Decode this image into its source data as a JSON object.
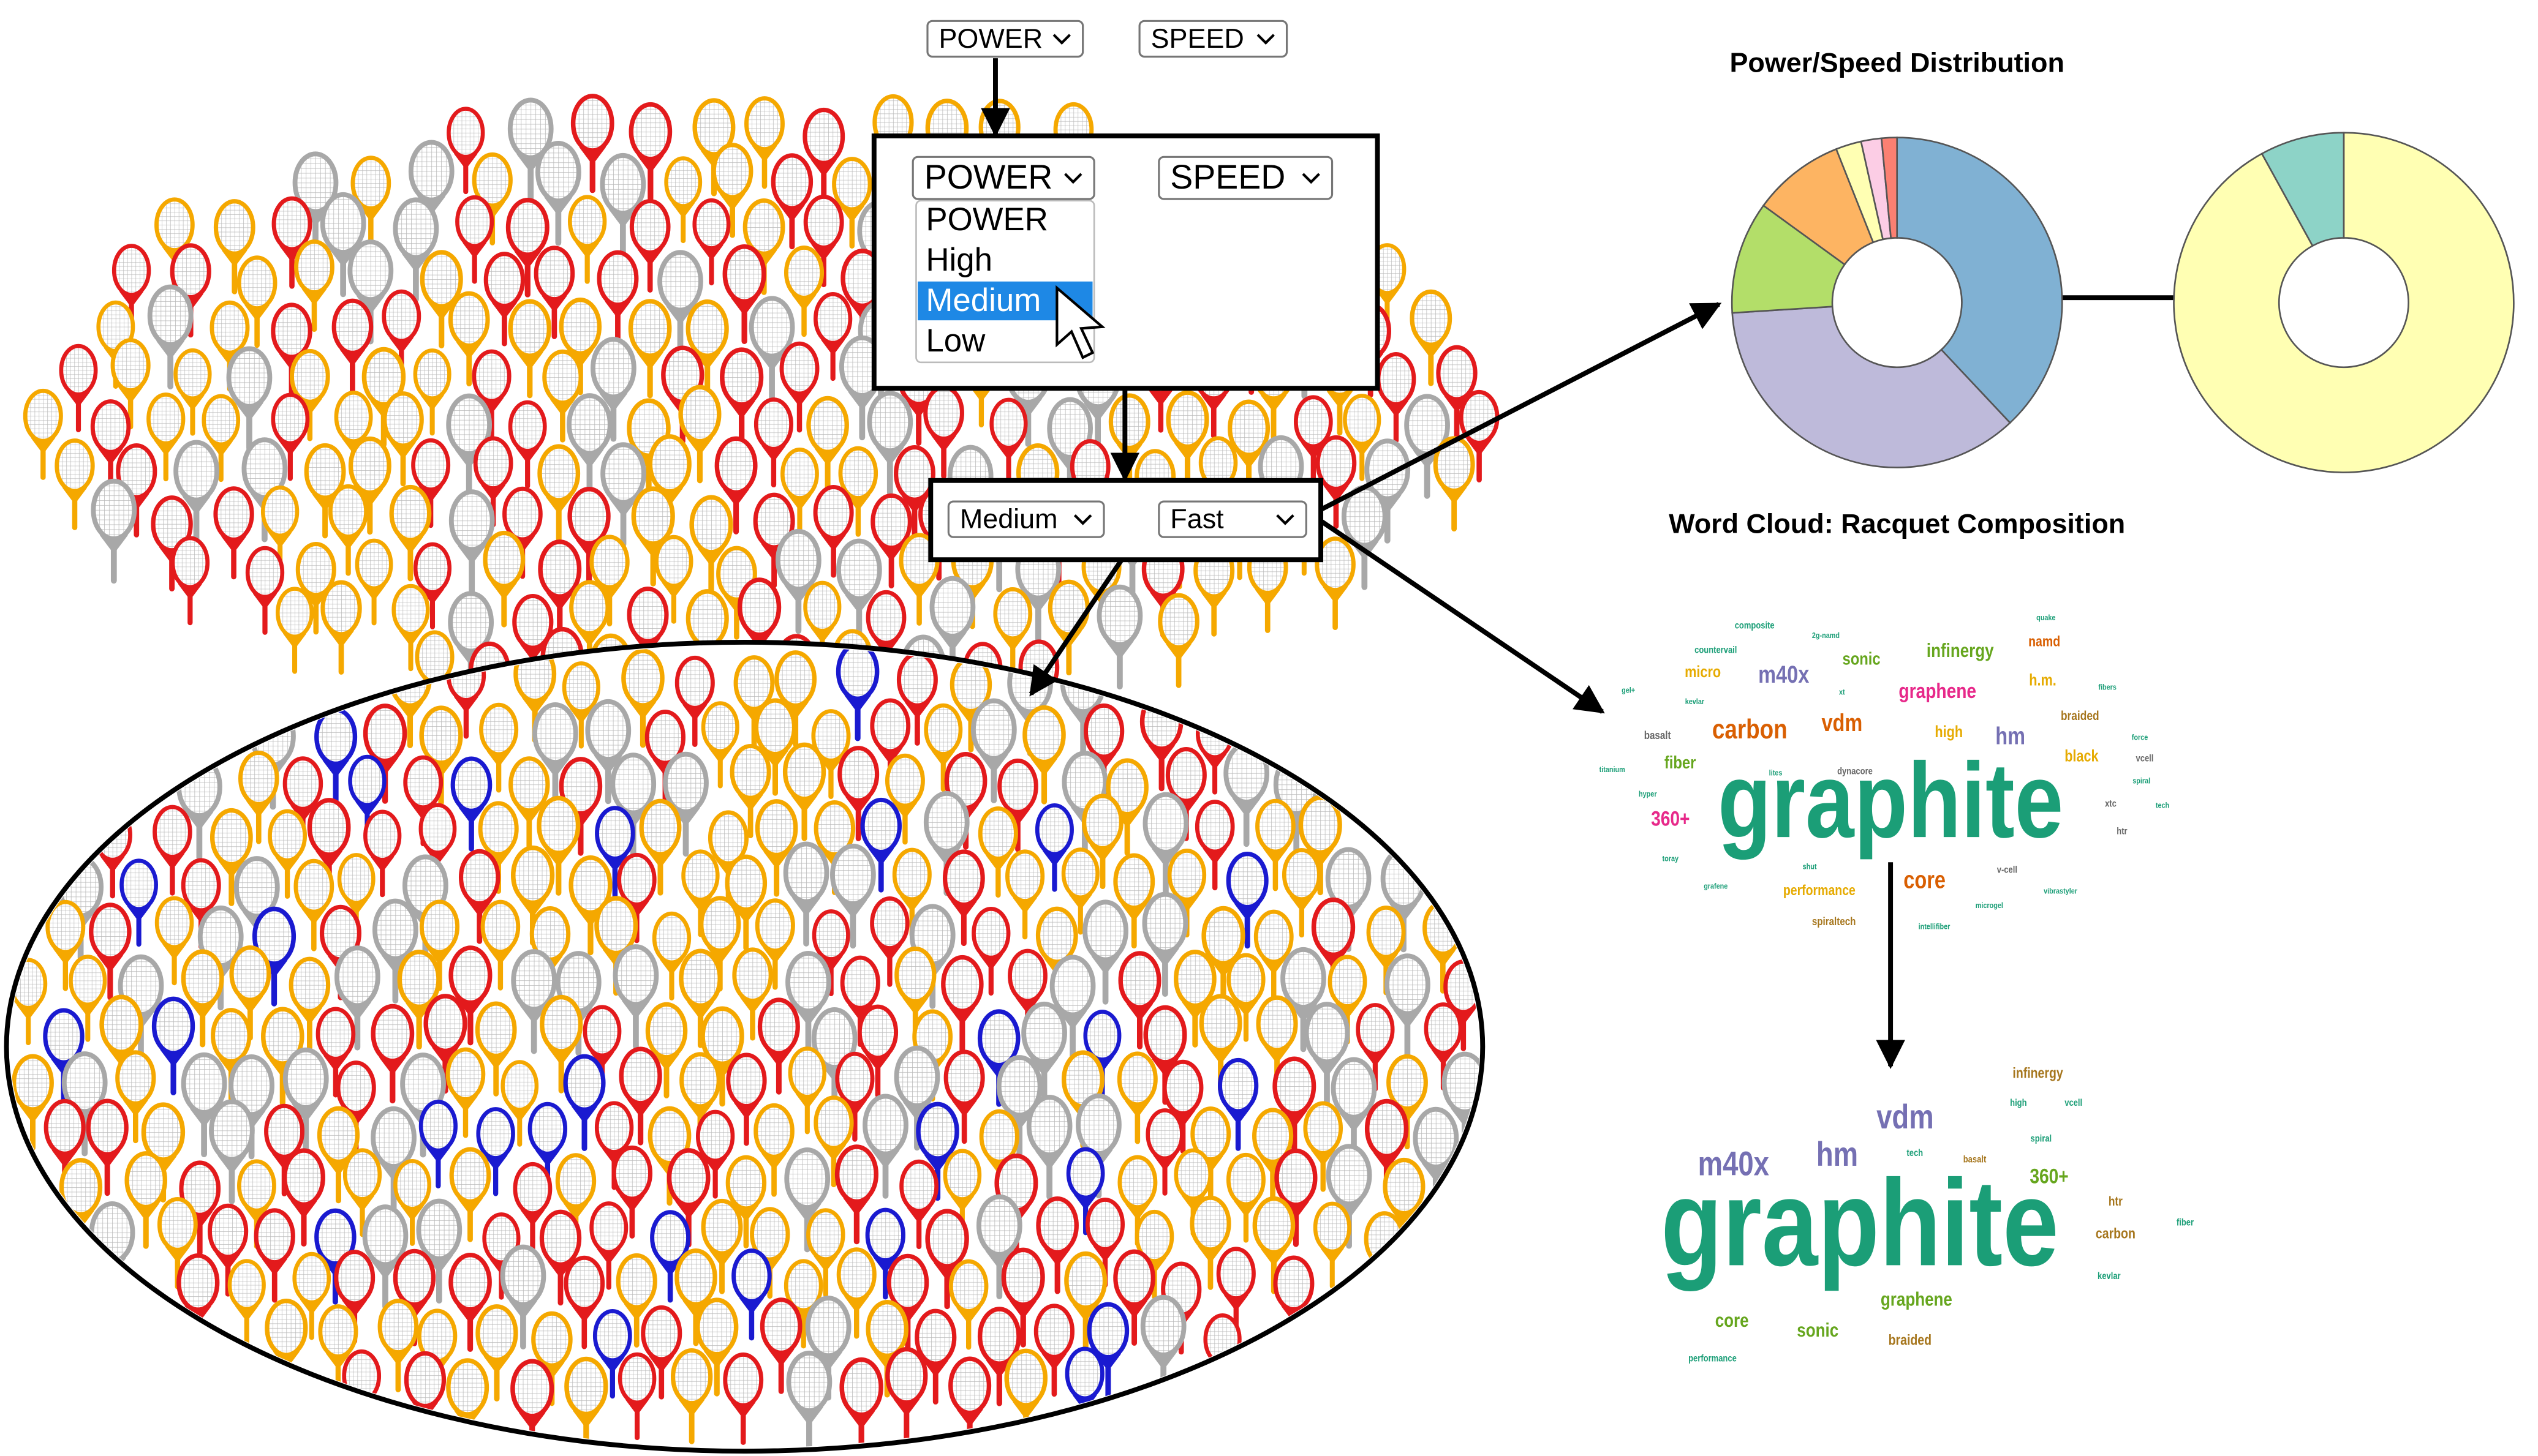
{
  "top_controls": {
    "power": "POWER",
    "speed": "SPEED"
  },
  "dropdown_panel": {
    "power": "POWER",
    "speed": "SPEED",
    "options": [
      {
        "label": "POWER"
      },
      {
        "label": "High"
      },
      {
        "label": "Medium",
        "highlighted": true
      },
      {
        "label": "Low"
      }
    ]
  },
  "filter_controls": {
    "power": "Medium",
    "speed": "Fast"
  },
  "chart_data": [
    {
      "type": "pie",
      "title": "Power/Speed Distribution",
      "donut": true,
      "values": [
        38,
        36,
        11,
        9,
        2.5,
        2,
        1.5
      ],
      "colors": [
        "#80b1d3",
        "#bebada",
        "#b3de69",
        "#fdb462",
        "#ffffb3",
        "#fccde5",
        "#fb8072"
      ]
    },
    {
      "type": "pie",
      "donut": true,
      "values": [
        92,
        8
      ],
      "colors": [
        "#ffffb3",
        "#8dd3c7"
      ]
    },
    {
      "type": "wordcloud",
      "title": "Word Cloud: Racquet Composition",
      "words": [
        {
          "text": "graphite",
          "color": "#1b9e77"
        },
        {
          "text": "carbon",
          "color": "#d95f02"
        },
        {
          "text": "vdm",
          "color": "#d95f02"
        },
        {
          "text": "m40x",
          "color": "#7570b3"
        },
        {
          "text": "hm",
          "color": "#7570b3"
        },
        {
          "text": "graphene",
          "color": "#e7298a"
        },
        {
          "text": "infinergy",
          "color": "#66a61e"
        },
        {
          "text": "sonic",
          "color": "#66a61e"
        },
        {
          "text": "namd",
          "color": "#d95f02"
        },
        {
          "text": "micro",
          "color": "#e6ab02"
        },
        {
          "text": "h.m.",
          "color": "#e6ab02"
        },
        {
          "text": "high",
          "color": "#e6ab02"
        },
        {
          "text": "black",
          "color": "#e6ab02"
        },
        {
          "text": "fiber",
          "color": "#66a61e"
        },
        {
          "text": "360+",
          "color": "#e7298a"
        },
        {
          "text": "core",
          "color": "#d95f02"
        },
        {
          "text": "performance",
          "color": "#e6ab02"
        },
        {
          "text": "spiraltech",
          "color": "#a6761d"
        },
        {
          "text": "braided",
          "color": "#a6761d"
        },
        {
          "text": "basalt",
          "color": "#666666"
        },
        {
          "text": "composite",
          "color": "#1b9e77"
        },
        {
          "text": "countervail",
          "color": "#1b9e77"
        },
        {
          "text": "2g-namd",
          "color": "#1b9e77"
        },
        {
          "text": "kevlar",
          "color": "#1b9e77"
        },
        {
          "text": "dynacore",
          "color": "#666666"
        },
        {
          "text": "titanium",
          "color": "#1b9e77"
        },
        {
          "text": "hyper",
          "color": "#1b9e77"
        },
        {
          "text": "toray",
          "color": "#1b9e77"
        },
        {
          "text": "grafene",
          "color": "#1b9e77"
        },
        {
          "text": "shut",
          "color": "#1b9e77"
        },
        {
          "text": "v-cell",
          "color": "#666666"
        },
        {
          "text": "microgel",
          "color": "#1b9e77"
        },
        {
          "text": "intellifiber",
          "color": "#1b9e77"
        },
        {
          "text": "vibrastyler",
          "color": "#1b9e77"
        },
        {
          "text": "xtc",
          "color": "#666666"
        },
        {
          "text": "htr",
          "color": "#666666"
        },
        {
          "text": "tech",
          "color": "#1b9e77"
        },
        {
          "text": "spiral",
          "color": "#1b9e77"
        },
        {
          "text": "vcell",
          "color": "#666666"
        },
        {
          "text": "force",
          "color": "#1b9e77"
        },
        {
          "text": "fibers",
          "color": "#1b9e77"
        },
        {
          "text": "quake",
          "color": "#1b9e77"
        },
        {
          "text": "gel+",
          "color": "#1b9e77"
        },
        {
          "text": "xt",
          "color": "#1b9e77"
        },
        {
          "text": "lites",
          "color": "#1b9e77"
        }
      ]
    },
    {
      "type": "wordcloud",
      "words": [
        {
          "text": "graphite",
          "color": "#1b9e77"
        },
        {
          "text": "vdm",
          "color": "#7570b3"
        },
        {
          "text": "m40x",
          "color": "#7570b3"
        },
        {
          "text": "hm",
          "color": "#7570b3"
        },
        {
          "text": "360+",
          "color": "#66a61e"
        },
        {
          "text": "infinergy",
          "color": "#a6761d"
        },
        {
          "text": "high",
          "color": "#1b9e77"
        },
        {
          "text": "vcell",
          "color": "#1b9e77"
        },
        {
          "text": "spiral",
          "color": "#1b9e77"
        },
        {
          "text": "basalt",
          "color": "#a6761d"
        },
        {
          "text": "tech",
          "color": "#1b9e77"
        },
        {
          "text": "htr",
          "color": "#a6761d"
        },
        {
          "text": "carbon",
          "color": "#a6761d"
        },
        {
          "text": "fiber",
          "color": "#1b9e77"
        },
        {
          "text": "kevlar",
          "color": "#1b9e77"
        },
        {
          "text": "graphene",
          "color": "#66a61e"
        },
        {
          "text": "core",
          "color": "#66a61e"
        },
        {
          "text": "sonic",
          "color": "#66a61e"
        },
        {
          "text": "braided",
          "color": "#a6761d"
        },
        {
          "text": "performance",
          "color": "#1b9e77"
        }
      ]
    }
  ]
}
